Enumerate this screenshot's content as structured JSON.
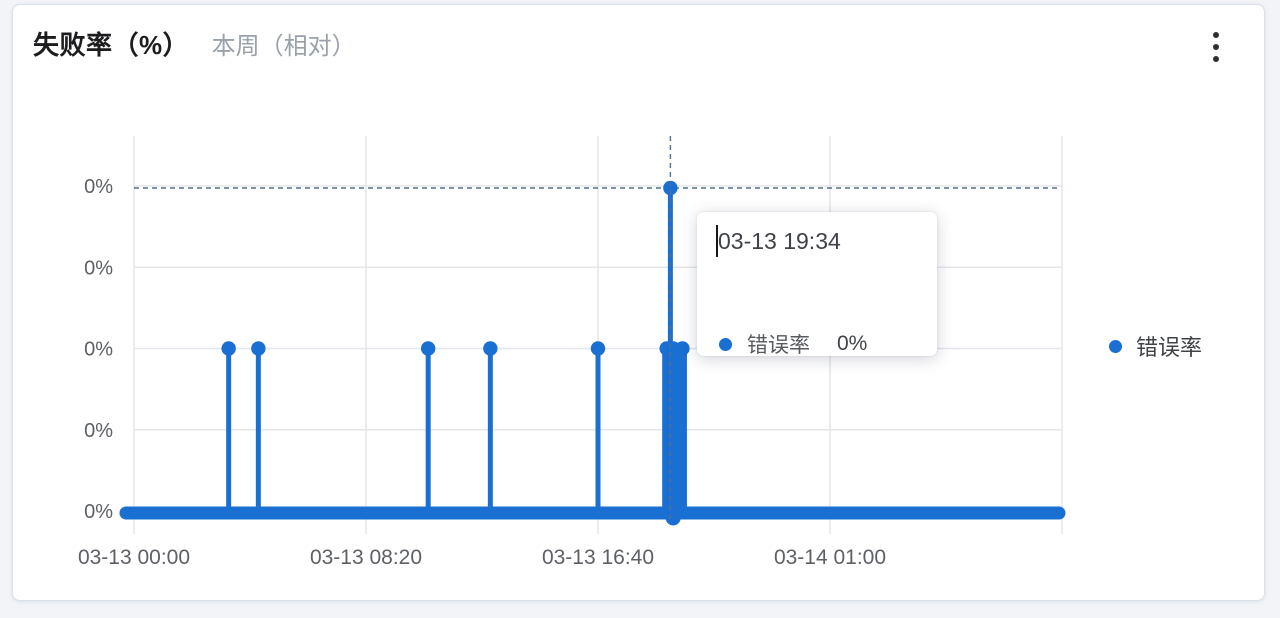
{
  "card": {
    "title": "失败率（%）",
    "subtitle": "本周（相对）",
    "menu_icon": "kebab-menu"
  },
  "tooltip": {
    "time": "03-13 19:34",
    "series": "错误率",
    "value": "0%"
  },
  "legend": [
    {
      "label": "错误率",
      "color": "#1a6fd3"
    }
  ],
  "colors": {
    "series_blue": "#1a6fd3",
    "gridline": "#e3e6ea",
    "crosshair": "#52708e",
    "axis_text": "#5d6065",
    "title_text": "#1d1d1f",
    "subtitle_text": "#9aa1ab"
  },
  "chart_data": {
    "type": "line",
    "subtype": "event-spike-impulses",
    "title": "失败率（%）",
    "period_label": "本周（相对）",
    "series_name": "错误率",
    "y_tick_labels": [
      "0%",
      "0%",
      "0%",
      "0%",
      "0%"
    ],
    "x_tick_labels": [
      "03-13 00:00",
      "03-13 08:20",
      "03-13 16:40",
      "03-14 01:00"
    ],
    "x_axis_start": "03-13 00:00",
    "x_axis_interval": "8h20m",
    "grid": true,
    "legend_position": "right",
    "baseline_value": "0%",
    "spikes": [
      {
        "time": "03-13 03:25",
        "t": 0.102,
        "h": 2,
        "w": 5,
        "value": "0%"
      },
      {
        "time": "03-13 04:27",
        "t": 0.134,
        "h": 2,
        "w": 5,
        "value": "0%"
      },
      {
        "time": "03-13 10:34",
        "t": 0.317,
        "h": 2,
        "w": 5,
        "value": "0%"
      },
      {
        "time": "03-13 12:47",
        "t": 0.384,
        "h": 2,
        "w": 5,
        "value": "0%"
      },
      {
        "time": "03-13 16:40",
        "t": 0.5,
        "h": 2,
        "w": 5,
        "value": "0%"
      },
      {
        "time": "03-13 19:13",
        "t": 0.574,
        "h": 2,
        "w": 9,
        "value": "0%"
      },
      {
        "time": "03-13 19:30",
        "t": 0.581,
        "h": 2,
        "w": 10,
        "value": "0%"
      },
      {
        "time": "03-13 19:39",
        "t": 0.591,
        "h": 2,
        "w": 9,
        "value": "0%"
      },
      {
        "time": "03-13 19:34",
        "t": 0.578,
        "h": 0,
        "w": 5,
        "value": "0%",
        "crosshair": true
      }
    ],
    "baseline_dot_t": 0.581,
    "highlighted_point": {
      "time": "03-13 19:34",
      "series": "错误率",
      "value": "0%"
    }
  }
}
